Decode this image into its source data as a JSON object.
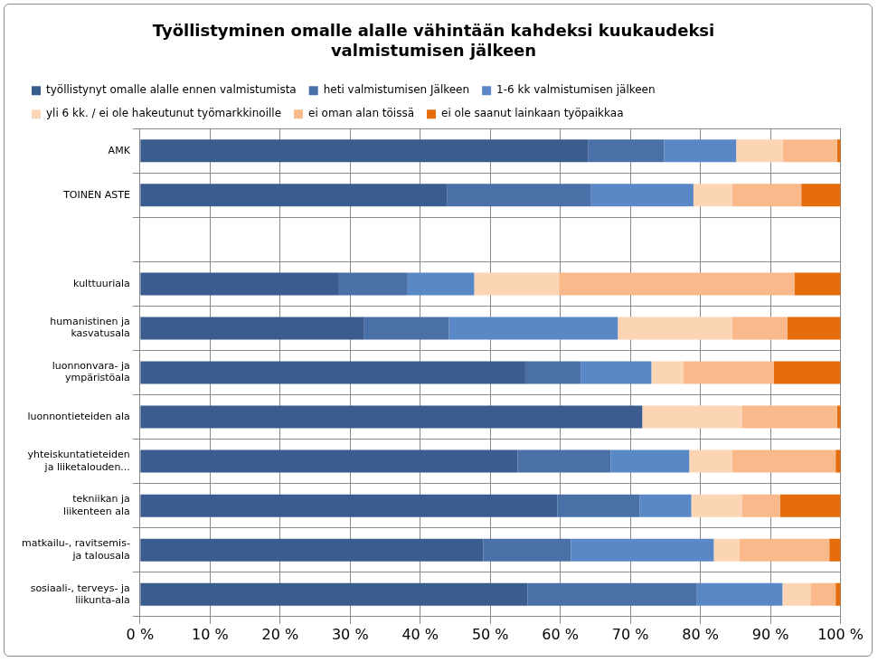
{
  "chart_data": {
    "type": "bar",
    "orientation": "horizontal",
    "stacked": true,
    "title": "Työllistyminen omalle alalle vähintään kahdeksi kuukaudeksi valmistumisen jälkeen",
    "categories": [
      "AMK",
      "TOINEN ASTE",
      null,
      "kulttuuriala",
      "humanistinen ja kasvatusala",
      "luonnonvara- ja ympäristöala",
      "luonnontieteiden ala",
      "yhteiskuntatieteiden ja liiketalouden...",
      "tekniikan ja liikenteen ala",
      "matkailu-, ravitsemis- ja talousala",
      "sosiaali-, terveys- ja liikunta-ala"
    ],
    "series": [
      {
        "name": "työllistynyt omalle alalle ennen valmistumista",
        "color": "#3b5c8f",
        "values": [
          64.0,
          43.8,
          null,
          28.4,
          32.0,
          55.0,
          71.7,
          53.9,
          59.6,
          49.0,
          55.3
        ]
      },
      {
        "name": "heti valmistumisen Jälkeen",
        "color": "#4a70a8",
        "values": [
          10.8,
          20.6,
          null,
          9.8,
          12.1,
          7.9,
          0,
          13.3,
          11.7,
          12.5,
          24.2
        ]
      },
      {
        "name": "1-6 kk valmistumisen jälkeen",
        "color": "#5a88c6",
        "values": [
          10.3,
          14.6,
          null,
          9.5,
          24.1,
          10.1,
          0,
          11.2,
          7.4,
          20.4,
          12.2
        ]
      },
      {
        "name": "yli 6 kk. / ei ole hakeutunut työmarkkinoille",
        "color": "#fcd5b5",
        "values": [
          6.7,
          5.5,
          null,
          12.1,
          16.3,
          4.6,
          14.2,
          6.1,
          7.2,
          3.7,
          4.0
        ]
      },
      {
        "name": "ei oman alan töissä",
        "color": "#f9b98a",
        "values": [
          7.7,
          9.9,
          null,
          33.6,
          7.9,
          12.9,
          13.6,
          14.8,
          5.5,
          12.8,
          3.6
        ]
      },
      {
        "name": "ei ole saanut lainkaan työpaikkaa",
        "color": "#e46c0a",
        "values": [
          0.5,
          5.6,
          null,
          6.6,
          7.6,
          9.5,
          0.5,
          0.7,
          8.6,
          1.6,
          0.7
        ]
      }
    ],
    "xlim": [
      0,
      100
    ],
    "xticks": [
      {
        "value": 0,
        "label": "0 %"
      },
      {
        "value": 10,
        "label": "10 %"
      },
      {
        "value": 20,
        "label": "20 %"
      },
      {
        "value": 30,
        "label": "30 %"
      },
      {
        "value": 40,
        "label": "40 %"
      },
      {
        "value": 50,
        "label": "50 %"
      },
      {
        "value": 60,
        "label": "60 %"
      },
      {
        "value": 70,
        "label": "70 %"
      },
      {
        "value": 80,
        "label": "80 %"
      },
      {
        "value": 90,
        "label": "90 %"
      },
      {
        "value": 100,
        "label": "100 %"
      }
    ],
    "grid": true,
    "legend": "top"
  }
}
